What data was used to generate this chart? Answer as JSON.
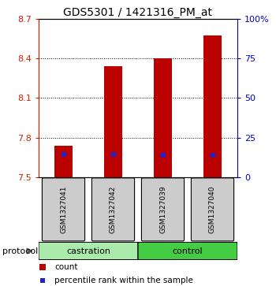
{
  "title": "GDS5301 / 1421316_PM_at",
  "samples": [
    "GSM1327041",
    "GSM1327042",
    "GSM1327039",
    "GSM1327040"
  ],
  "bar_tops": [
    7.74,
    8.34,
    8.4,
    8.57
  ],
  "bar_base": 7.5,
  "percentile_values": [
    7.675,
    7.672,
    7.665,
    7.668
  ],
  "ylim_left": [
    7.5,
    8.7
  ],
  "ylim_right": [
    0,
    100
  ],
  "yticks_left": [
    7.5,
    7.8,
    8.1,
    8.4,
    8.7
  ],
  "yticks_right": [
    0,
    25,
    50,
    75,
    100
  ],
  "ytick_labels_right": [
    "0",
    "25",
    "50",
    "75",
    "100%"
  ],
  "bar_color": "#bb0000",
  "percentile_color": "#2222cc",
  "left_axis_color": "#cc2200",
  "right_axis_color": "#0000cc",
  "castration_color": "#aaeaaa",
  "control_color": "#44cc44",
  "sample_box_color": "#cccccc",
  "bar_width": 0.35,
  "legend_count_color": "#bb0000",
  "legend_percentile_color": "#2222cc"
}
